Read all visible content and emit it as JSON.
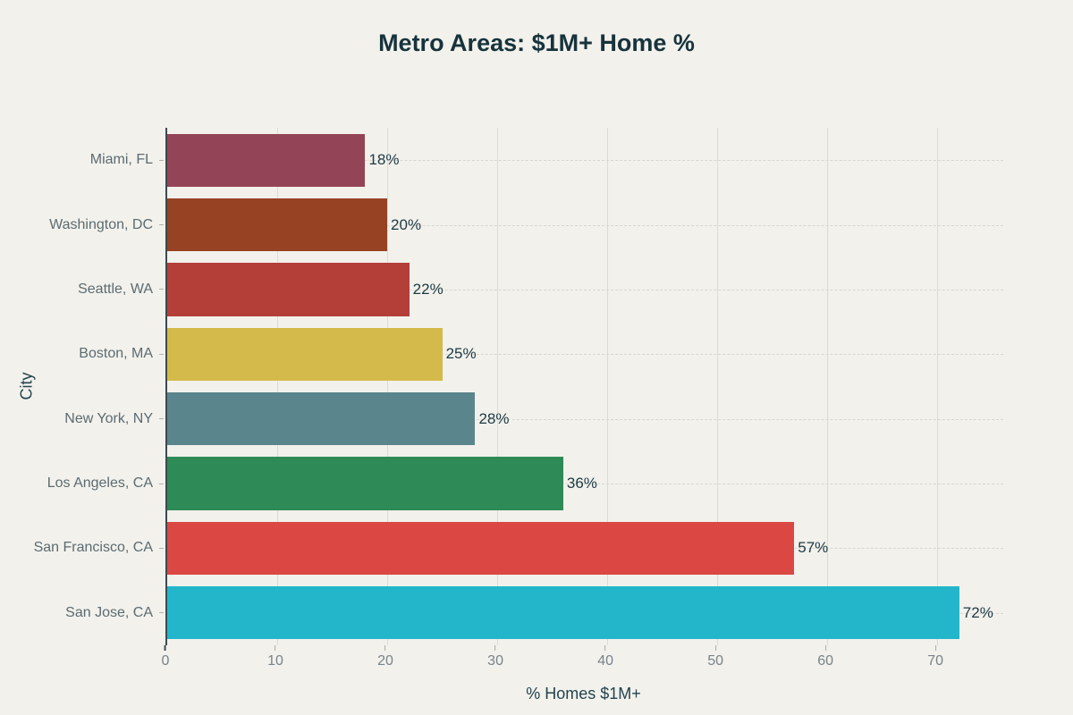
{
  "chart_data": {
    "type": "bar",
    "orientation": "horizontal",
    "title": "Metro Areas: $1M+ Home %",
    "xlabel": "% Homes $1M+",
    "ylabel": "City",
    "categories": [
      "Miami, FL",
      "Washington, DC",
      "Seattle, WA",
      "Boston, MA",
      "New York, NY",
      "Los Angeles, CA",
      "San Francisco, CA",
      "San Jose, CA"
    ],
    "values": [
      18,
      20,
      22,
      25,
      28,
      36,
      57,
      72
    ],
    "value_labels": [
      "18%",
      "20%",
      "22%",
      "25%",
      "28%",
      "36%",
      "57%",
      "72%"
    ],
    "bar_colors": [
      "#944457",
      "#964223",
      "#b43f39",
      "#d4ba4a",
      "#5a858c",
      "#2e8a56",
      "#db4743",
      "#23b6ca"
    ],
    "x_ticks": [
      0,
      10,
      20,
      30,
      40,
      50,
      60,
      70
    ],
    "xlim": [
      0,
      76
    ],
    "grid": true,
    "legend": false
  },
  "colors": {
    "background": "#f2f1ec",
    "title_text": "#17333c",
    "axis_label_text": "#24434d",
    "value_label_text": "#1d3a44",
    "ytick_text": "#5c6b71",
    "xtick_text": "#77838a",
    "grid_line": "#dddbd3",
    "axis_line": "#3c4a50"
  }
}
